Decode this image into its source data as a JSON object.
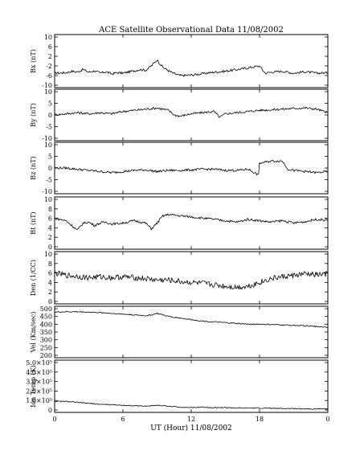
{
  "chart_data": {
    "type": "line",
    "title": "ACE Satellite Observational Data   11/08/2002",
    "xlabel": "UT (Hour)   11/08/2002",
    "xlim": [
      0,
      24
    ],
    "xtick_labels": [
      "0",
      "6",
      "12",
      "18",
      "0"
    ],
    "panels": [
      {
        "id": "bx",
        "ylabel": "Bx (nT)",
        "ylim": [
          -10,
          10
        ],
        "ytick_labels": [
          "10",
          "6",
          "2",
          "-2",
          "-6",
          "-10"
        ],
        "ytick_values": [
          10,
          6,
          2,
          -2,
          -6,
          -10
        ],
        "series": [
          {
            "x": [
              0,
              1,
              1.5,
              2,
              2.5,
              3,
              3.5,
              4,
              4.5,
              5,
              5.5,
              6,
              6.5,
              7,
              7.5,
              8,
              8.5,
              9,
              9.5,
              10,
              10.5,
              11,
              12,
              13,
              14,
              15,
              16,
              17,
              18,
              18.5,
              19,
              20,
              21,
              22,
              23,
              24
            ],
            "y": [
              -5,
              -4.8,
              -4.2,
              -4.5,
              -3.5,
              -4.6,
              -4,
              -5,
              -4.4,
              -5.3,
              -4.8,
              -5,
              -4.5,
              -4,
              -3.5,
              -3.8,
              -2,
              0.5,
              -2.5,
              -4,
              -5.2,
              -6,
              -5.8,
              -5.2,
              -4.6,
              -4.2,
              -3.5,
              -2.8,
              -2,
              -5,
              -4.6,
              -4.2,
              -5,
              -4.4,
              -5,
              -4.8
            ]
          }
        ]
      },
      {
        "id": "by",
        "ylabel": "By (nT)",
        "ylim": [
          -10,
          10
        ],
        "ytick_labels": [
          "10",
          "5",
          "0",
          "-5",
          "-10"
        ],
        "ytick_values": [
          10,
          5,
          0,
          -5,
          -10
        ],
        "series": [
          {
            "x": [
              0,
              1,
              2,
              3,
              4,
              5,
              6,
              7,
              8,
              9,
              10,
              10.5,
              11,
              12,
              13,
              14,
              14.5,
              15,
              16,
              17,
              18,
              19,
              20,
              21,
              22,
              23,
              24
            ],
            "y": [
              0,
              0.5,
              1,
              0.5,
              1,
              0.5,
              1.5,
              2,
              2.5,
              3,
              2,
              0,
              -0.5,
              0.5,
              1,
              1.5,
              -1,
              0.5,
              1,
              1.5,
              2,
              2.2,
              2.5,
              2.8,
              3,
              2.5,
              1
            ]
          }
        ]
      },
      {
        "id": "bz",
        "ylabel": "Bz (nT)",
        "ylim": [
          -10,
          10
        ],
        "ytick_labels": [
          "10",
          "5",
          "0",
          "-5",
          "-10"
        ],
        "ytick_values": [
          10,
          5,
          0,
          -5,
          -10
        ],
        "series": [
          {
            "x": [
              0,
              1,
              2,
              3,
              4,
              5,
              6,
              7,
              8,
              9,
              10,
              11,
              12,
              13,
              14,
              15,
              16,
              17,
              17.9,
              18,
              19,
              20,
              20.5,
              21,
              22,
              23,
              24
            ],
            "y": [
              0,
              0,
              -0.5,
              -1,
              -1.5,
              -2,
              -1.5,
              -1,
              -0.8,
              -1.5,
              -1,
              -1,
              -0.8,
              -0.5,
              -0.5,
              -1,
              -1,
              -0.5,
              -3,
              2,
              3,
              3,
              -0.5,
              -1,
              -1.5,
              -2,
              -1.5
            ]
          }
        ]
      },
      {
        "id": "bt",
        "ylabel": "Bt (nT)",
        "ylim": [
          0,
          10
        ],
        "ytick_labels": [
          "10",
          "8",
          "6",
          "4",
          "2",
          "0"
        ],
        "ytick_values": [
          10,
          8,
          6,
          4,
          2,
          0
        ],
        "series": [
          {
            "x": [
              0,
              1,
              1.5,
              2,
              2.5,
              3,
              3.5,
              4,
              4.5,
              5,
              6,
              7,
              8,
              8.5,
              9,
              9.5,
              10,
              12,
              14,
              15,
              16,
              17,
              18,
              19,
              20,
              21,
              22,
              23,
              24
            ],
            "y": [
              6,
              5.5,
              4.5,
              3.5,
              5,
              5.2,
              4.5,
              5,
              5.2,
              4.8,
              5,
              5.5,
              5,
              3.8,
              5,
              6.5,
              6.8,
              6.3,
              5.8,
              5.5,
              5.2,
              5.8,
              5.5,
              5.2,
              5.5,
              5,
              5.3,
              5.8,
              5.6
            ]
          }
        ]
      },
      {
        "id": "den",
        "ylabel": "Den (1/CC)",
        "ylim": [
          0,
          10
        ],
        "ytick_labels": [
          "10",
          "8",
          "6",
          "4",
          "2",
          "0"
        ],
        "ytick_values": [
          10,
          8,
          6,
          4,
          2,
          0
        ],
        "series": [
          {
            "x": [
              0,
              1,
              2,
              3,
              4,
              5,
              6,
              7,
              8,
              9,
              10,
              11,
              12,
              13,
              14,
              15,
              16,
              17,
              18,
              19,
              20,
              21,
              22,
              23,
              24
            ],
            "y": [
              6,
              5.5,
              5.3,
              5,
              5.2,
              5,
              5.2,
              5,
              4.8,
              4.5,
              4.5,
              4.2,
              4,
              3.8,
              3.5,
              3.2,
              3,
              3.2,
              4,
              4.8,
              5.2,
              5.5,
              5.8,
              5.6,
              5.8
            ]
          }
        ]
      },
      {
        "id": "vel",
        "ylabel": "Vel (Km/sec)",
        "ylim": [
          200,
          500
        ],
        "ytick_labels": [
          "500",
          "450",
          "400",
          "350",
          "300",
          "250",
          "200"
        ],
        "ytick_values": [
          500,
          450,
          400,
          350,
          300,
          250,
          200
        ],
        "series": [
          {
            "x": [
              0,
              1,
              2,
              3,
              4,
              5,
              6,
              7,
              8,
              8.5,
              9,
              9.5,
              10,
              11,
              12,
              13,
              14,
              15,
              16,
              17,
              18,
              19,
              20,
              21,
              22,
              23,
              24
            ],
            "y": [
              478,
              480,
              480,
              478,
              475,
              470,
              465,
              460,
              455,
              460,
              470,
              460,
              450,
              440,
              430,
              420,
              415,
              410,
              405,
              400,
              400,
              398,
              395,
              393,
              390,
              385,
              382
            ]
          }
        ]
      },
      {
        "id": "temp",
        "ylabel": "Ion Temp (K)",
        "ylim": [
          0,
          500000
        ],
        "ytick_labels": [
          "5.0×10⁵",
          "4.0×10⁵",
          "3.0×10⁵",
          "2.0×10⁵",
          "1.0×10⁵",
          "0"
        ],
        "ytick_values": [
          500000,
          400000,
          300000,
          200000,
          100000,
          0
        ],
        "series": [
          {
            "x": [
              0,
              1,
              2,
              3,
              4,
              5,
              6,
              7,
              8,
              9,
              10,
              11,
              12,
              13,
              14,
              15,
              16,
              17,
              18,
              19,
              20,
              21,
              22,
              23,
              24
            ],
            "y": [
              90000,
              90000,
              80000,
              70000,
              60000,
              55000,
              50000,
              45000,
              40000,
              50000,
              40000,
              30000,
              25000,
              30000,
              25000,
              25000,
              20000,
              20000,
              20000,
              18000,
              15000,
              15000,
              12000,
              12000,
              12000
            ]
          }
        ]
      }
    ]
  }
}
